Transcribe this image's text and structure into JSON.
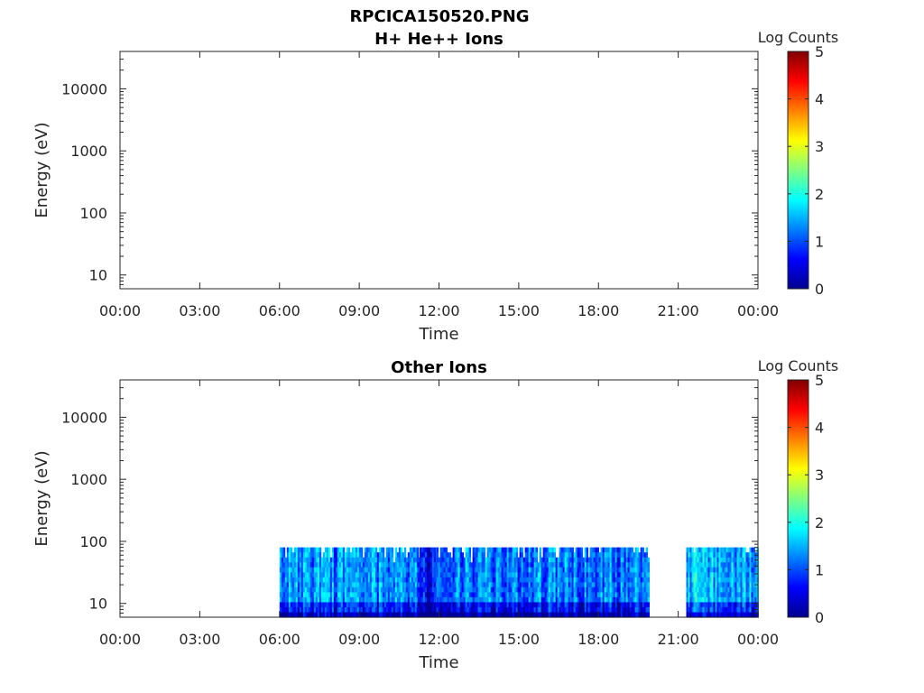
{
  "figure": {
    "title": "RPCICA150520.PNG"
  },
  "colormap": [
    "#00008f",
    "#0000ff",
    "#0080ff",
    "#00ffff",
    "#80ff80",
    "#ffff00",
    "#ff8000",
    "#ff0000",
    "#800000"
  ],
  "chart_data": [
    {
      "type": "heatmap",
      "title": "H+ He++ Ions",
      "xlabel": "Time",
      "ylabel": "Energy (eV)",
      "x_ticks": [
        "00:00",
        "03:00",
        "06:00",
        "09:00",
        "12:00",
        "15:00",
        "18:00",
        "21:00",
        "00:00"
      ],
      "xlim_hours": [
        0,
        24
      ],
      "y_scale": "log",
      "y_ticks": [
        10,
        100,
        1000,
        10000
      ],
      "y_tick_labels": [
        "10",
        "100",
        "1000",
        "10000"
      ],
      "ylim": [
        6,
        40000
      ],
      "colorbar": {
        "label": "Log Counts",
        "range": [
          0,
          5
        ],
        "ticks": [
          "0",
          "1",
          "2",
          "3",
          "4",
          "5"
        ]
      },
      "data_segments": []
    },
    {
      "type": "heatmap",
      "title": "Other Ions",
      "xlabel": "Time",
      "ylabel": "Energy (eV)",
      "x_ticks": [
        "00:00",
        "03:00",
        "06:00",
        "09:00",
        "12:00",
        "15:00",
        "18:00",
        "21:00",
        "00:00"
      ],
      "xlim_hours": [
        0,
        24
      ],
      "y_scale": "log",
      "y_ticks": [
        10,
        100,
        1000,
        10000
      ],
      "y_tick_labels": [
        "10",
        "100",
        "1000",
        "10000"
      ],
      "ylim": [
        6,
        40000
      ],
      "colorbar": {
        "label": "Log Counts",
        "range": [
          0,
          5
        ],
        "ticks": [
          "0",
          "1",
          "2",
          "3",
          "4",
          "5"
        ]
      },
      "energy_range_ev": [
        6,
        80
      ],
      "data_segments": [
        {
          "start_hour": 6.0,
          "end_hour": 11.2,
          "typical_log_counts": 1.3
        },
        {
          "start_hour": 11.2,
          "end_hour": 11.9,
          "typical_log_counts": 0.6
        },
        {
          "start_hour": 11.9,
          "end_hour": 19.9,
          "typical_log_counts": 1.2
        },
        {
          "start_hour": 21.3,
          "end_hour": 24.0,
          "typical_log_counts": 1.5
        }
      ]
    }
  ]
}
